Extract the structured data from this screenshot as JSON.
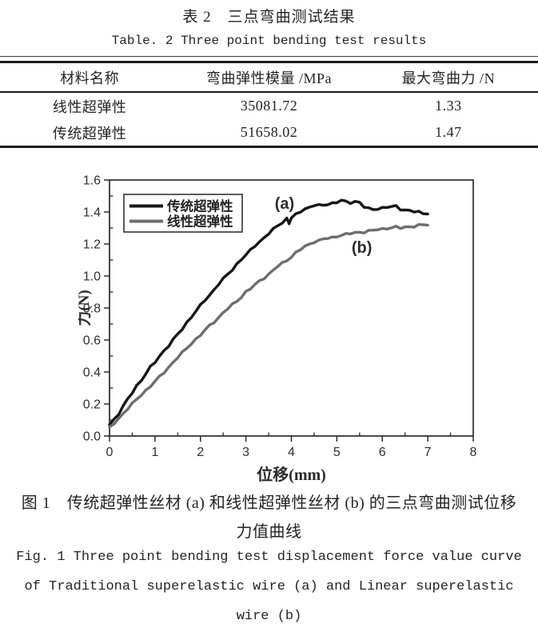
{
  "table": {
    "title_zh": "表 2　三点弯曲测试结果",
    "title_en": "Table. 2  Three point bending test results",
    "headers": [
      "材料名称",
      "弯曲弹性模量 /MPa",
      "最大弯曲力 /N"
    ],
    "rows": [
      [
        "线性超弹性",
        "35081.72",
        "1.33"
      ],
      [
        "传统超弹性",
        "51658.02",
        "1.47"
      ]
    ]
  },
  "figure": {
    "caption_zh_line1": "图 1　传统超弹性丝材 (a) 和线性超弹性丝材 (b) 的三点弯曲测试位移",
    "caption_zh_line2": "力值曲线",
    "caption_en_line1": "Fig. 1  Three point bending test displacement force value curve",
    "caption_en_line2": "of Traditional superelastic wire (a) and Linear superelastic",
    "caption_en_line3": "wire (b)"
  },
  "colors": {
    "axis": "#2b2b2b",
    "tick_label": "#2e2e2e",
    "series_traditional": "#161616",
    "series_linear": "#6e6e6e"
  },
  "chart_data": {
    "type": "line",
    "title": "",
    "xlabel": "位移(mm)",
    "ylabel": "力(N)",
    "xlim": [
      0,
      8
    ],
    "ylim": [
      0,
      1.6
    ],
    "x_major_step": 1,
    "x_minor_step": 0.5,
    "y_major_step": 0.2,
    "y_minor_step": 0.1,
    "grid": false,
    "legend_position": "top-left",
    "series": [
      {
        "name": "传统超弹性",
        "color": "#161616",
        "annotation": "(a)",
        "annotation_xy": [
          3.85,
          1.45
        ],
        "points": [
          [
            0,
            0.07
          ],
          [
            0.1,
            0.105
          ],
          [
            0.2,
            0.14
          ],
          [
            0.3,
            0.185
          ],
          [
            0.4,
            0.23
          ],
          [
            0.5,
            0.27
          ],
          [
            0.6,
            0.315
          ],
          [
            0.7,
            0.35
          ],
          [
            0.8,
            0.39
          ],
          [
            0.9,
            0.43
          ],
          [
            1.0,
            0.46
          ],
          [
            1.1,
            0.5
          ],
          [
            1.2,
            0.535
          ],
          [
            1.3,
            0.565
          ],
          [
            1.4,
            0.6
          ],
          [
            1.5,
            0.635
          ],
          [
            1.6,
            0.67
          ],
          [
            1.7,
            0.71
          ],
          [
            1.8,
            0.745
          ],
          [
            1.9,
            0.78
          ],
          [
            2.0,
            0.815
          ],
          [
            2.1,
            0.85
          ],
          [
            2.2,
            0.88
          ],
          [
            2.3,
            0.915
          ],
          [
            2.4,
            0.95
          ],
          [
            2.5,
            0.98
          ],
          [
            2.6,
            1.01
          ],
          [
            2.7,
            1.04
          ],
          [
            2.8,
            1.075
          ],
          [
            2.9,
            1.105
          ],
          [
            3.0,
            1.13
          ],
          [
            3.1,
            1.16
          ],
          [
            3.2,
            1.19
          ],
          [
            3.3,
            1.215
          ],
          [
            3.4,
            1.24
          ],
          [
            3.5,
            1.265
          ],
          [
            3.6,
            1.29
          ],
          [
            3.7,
            1.315
          ],
          [
            3.8,
            1.335
          ],
          [
            3.9,
            1.36
          ],
          [
            3.95,
            1.33
          ],
          [
            4.0,
            1.36
          ],
          [
            4.1,
            1.385
          ],
          [
            4.2,
            1.405
          ],
          [
            4.3,
            1.42
          ],
          [
            4.4,
            1.43
          ],
          [
            4.5,
            1.44
          ],
          [
            4.6,
            1.44
          ],
          [
            4.7,
            1.445
          ],
          [
            4.8,
            1.45
          ],
          [
            4.9,
            1.455
          ],
          [
            5.0,
            1.46
          ],
          [
            5.1,
            1.47
          ],
          [
            5.2,
            1.465
          ],
          [
            5.3,
            1.46
          ],
          [
            5.4,
            1.465
          ],
          [
            5.5,
            1.46
          ],
          [
            5.6,
            1.43
          ],
          [
            5.7,
            1.42
          ],
          [
            5.8,
            1.42
          ],
          [
            5.9,
            1.42
          ],
          [
            6.0,
            1.425
          ],
          [
            6.1,
            1.43
          ],
          [
            6.2,
            1.43
          ],
          [
            6.3,
            1.44
          ],
          [
            6.4,
            1.42
          ],
          [
            6.5,
            1.41
          ],
          [
            6.6,
            1.41
          ],
          [
            6.7,
            1.4
          ],
          [
            6.8,
            1.4
          ],
          [
            6.9,
            1.395
          ],
          [
            7.0,
            1.39
          ]
        ]
      },
      {
        "name": "线性超弹性",
        "color": "#6e6e6e",
        "annotation": "(b)",
        "annotation_xy": [
          5.55,
          1.175
        ],
        "points": [
          [
            0,
            0.05
          ],
          [
            0.1,
            0.08
          ],
          [
            0.2,
            0.11
          ],
          [
            0.3,
            0.14
          ],
          [
            0.4,
            0.17
          ],
          [
            0.5,
            0.2
          ],
          [
            0.6,
            0.23
          ],
          [
            0.7,
            0.26
          ],
          [
            0.8,
            0.285
          ],
          [
            0.9,
            0.31
          ],
          [
            1.0,
            0.34
          ],
          [
            1.1,
            0.37
          ],
          [
            1.2,
            0.4
          ],
          [
            1.3,
            0.43
          ],
          [
            1.4,
            0.46
          ],
          [
            1.5,
            0.49
          ],
          [
            1.6,
            0.52
          ],
          [
            1.7,
            0.55
          ],
          [
            1.8,
            0.58
          ],
          [
            1.9,
            0.605
          ],
          [
            2.0,
            0.63
          ],
          [
            2.1,
            0.66
          ],
          [
            2.2,
            0.69
          ],
          [
            2.3,
            0.715
          ],
          [
            2.4,
            0.74
          ],
          [
            2.5,
            0.77
          ],
          [
            2.6,
            0.795
          ],
          [
            2.7,
            0.82
          ],
          [
            2.8,
            0.845
          ],
          [
            2.9,
            0.87
          ],
          [
            3.0,
            0.9
          ],
          [
            3.1,
            0.92
          ],
          [
            3.2,
            0.945
          ],
          [
            3.3,
            0.97
          ],
          [
            3.4,
            0.99
          ],
          [
            3.5,
            1.01
          ],
          [
            3.6,
            1.035
          ],
          [
            3.7,
            1.06
          ],
          [
            3.8,
            1.08
          ],
          [
            3.9,
            1.1
          ],
          [
            4.0,
            1.12
          ],
          [
            4.1,
            1.145
          ],
          [
            4.2,
            1.165
          ],
          [
            4.3,
            1.185
          ],
          [
            4.4,
            1.2
          ],
          [
            4.5,
            1.215
          ],
          [
            4.6,
            1.22
          ],
          [
            4.7,
            1.23
          ],
          [
            4.8,
            1.235
          ],
          [
            4.9,
            1.24
          ],
          [
            5.0,
            1.25
          ],
          [
            5.1,
            1.255
          ],
          [
            5.2,
            1.26
          ],
          [
            5.3,
            1.265
          ],
          [
            5.4,
            1.27
          ],
          [
            5.5,
            1.275
          ],
          [
            5.6,
            1.275
          ],
          [
            5.7,
            1.28
          ],
          [
            5.8,
            1.285
          ],
          [
            5.9,
            1.29
          ],
          [
            6.0,
            1.295
          ],
          [
            6.1,
            1.3
          ],
          [
            6.2,
            1.3
          ],
          [
            6.3,
            1.305
          ],
          [
            6.4,
            1.3
          ],
          [
            6.5,
            1.305
          ],
          [
            6.6,
            1.31
          ],
          [
            6.7,
            1.31
          ],
          [
            6.8,
            1.315
          ],
          [
            6.9,
            1.32
          ],
          [
            7.0,
            1.32
          ]
        ]
      }
    ]
  }
}
